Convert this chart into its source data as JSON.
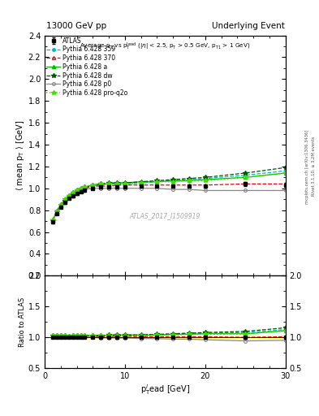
{
  "title_left": "13000 GeV pp",
  "title_right": "Underlying Event",
  "xlabel": "p$_\\mathregular{T}^{l}$ead [GeV]",
  "ylabel_main": "$\\langle$ mean p$_\\mathregular{T}$ $\\rangle$ [GeV]",
  "ylabel_ratio": "Ratio to ATLAS",
  "annotation": "ATLAS_2017_I1509919",
  "right_label1": "Rivet 3.1.10, ≥ 3.2M events",
  "right_label2": "mcplots.cern.ch [arXiv:1306.3436]",
  "ylim_main": [
    0.2,
    2.4
  ],
  "ylim_ratio": [
    0.5,
    2.0
  ],
  "xlim": [
    0,
    30
  ],
  "atlas_x": [
    1.0,
    1.5,
    2.0,
    2.5,
    3.0,
    3.5,
    4.0,
    4.5,
    5.0,
    6.0,
    7.0,
    8.0,
    9.0,
    10.0,
    12.0,
    14.0,
    16.0,
    18.0,
    20.0,
    25.0,
    30.0
  ],
  "atlas_y": [
    0.69,
    0.77,
    0.83,
    0.87,
    0.91,
    0.93,
    0.95,
    0.97,
    0.98,
    1.0,
    1.01,
    1.01,
    1.01,
    1.01,
    1.02,
    1.02,
    1.02,
    1.02,
    1.02,
    1.04,
    1.03
  ],
  "atlas_yerr": [
    0.01,
    0.01,
    0.01,
    0.01,
    0.01,
    0.01,
    0.01,
    0.01,
    0.01,
    0.01,
    0.01,
    0.01,
    0.01,
    0.01,
    0.01,
    0.01,
    0.01,
    0.01,
    0.01,
    0.02,
    0.02
  ],
  "p359_x": [
    1.0,
    1.5,
    2.0,
    2.5,
    3.0,
    3.5,
    4.0,
    4.5,
    5.0,
    6.0,
    7.0,
    8.0,
    9.0,
    10.0,
    12.0,
    14.0,
    16.0,
    18.0,
    20.0,
    25.0,
    30.0
  ],
  "p359_y": [
    0.7,
    0.78,
    0.84,
    0.88,
    0.92,
    0.95,
    0.97,
    0.99,
    1.0,
    1.02,
    1.03,
    1.04,
    1.04,
    1.04,
    1.05,
    1.06,
    1.07,
    1.08,
    1.09,
    1.12,
    1.16
  ],
  "p370_x": [
    1.0,
    1.5,
    2.0,
    2.5,
    3.0,
    3.5,
    4.0,
    4.5,
    5.0,
    6.0,
    7.0,
    8.0,
    9.0,
    10.0,
    12.0,
    14.0,
    16.0,
    18.0,
    20.0,
    25.0,
    30.0
  ],
  "p370_y": [
    0.7,
    0.78,
    0.84,
    0.88,
    0.92,
    0.95,
    0.97,
    0.99,
    1.0,
    1.02,
    1.02,
    1.02,
    1.03,
    1.03,
    1.03,
    1.03,
    1.03,
    1.03,
    1.03,
    1.04,
    1.04
  ],
  "pa_x": [
    1.0,
    1.5,
    2.0,
    2.5,
    3.0,
    3.5,
    4.0,
    4.5,
    5.0,
    6.0,
    7.0,
    8.0,
    9.0,
    10.0,
    12.0,
    14.0,
    16.0,
    18.0,
    20.0,
    25.0,
    30.0
  ],
  "pa_y": [
    0.71,
    0.79,
    0.85,
    0.89,
    0.93,
    0.96,
    0.98,
    1.0,
    1.01,
    1.03,
    1.04,
    1.04,
    1.05,
    1.05,
    1.06,
    1.06,
    1.07,
    1.07,
    1.08,
    1.1,
    1.14
  ],
  "pdw_x": [
    1.0,
    1.5,
    2.0,
    2.5,
    3.0,
    3.5,
    4.0,
    4.5,
    5.0,
    6.0,
    7.0,
    8.0,
    9.0,
    10.0,
    12.0,
    14.0,
    16.0,
    18.0,
    20.0,
    25.0,
    30.0
  ],
  "pdw_y": [
    0.71,
    0.79,
    0.85,
    0.89,
    0.93,
    0.96,
    0.98,
    1.0,
    1.01,
    1.03,
    1.04,
    1.05,
    1.05,
    1.05,
    1.06,
    1.07,
    1.08,
    1.09,
    1.1,
    1.14,
    1.19
  ],
  "pp0_x": [
    1.0,
    1.5,
    2.0,
    2.5,
    3.0,
    3.5,
    4.0,
    4.5,
    5.0,
    6.0,
    7.0,
    8.0,
    9.0,
    10.0,
    12.0,
    14.0,
    16.0,
    18.0,
    20.0,
    25.0,
    30.0
  ],
  "pp0_y": [
    0.7,
    0.78,
    0.84,
    0.88,
    0.92,
    0.94,
    0.96,
    0.98,
    0.99,
    1.0,
    1.0,
    1.0,
    1.0,
    1.0,
    1.0,
    1.0,
    0.99,
    0.99,
    0.98,
    0.98,
    0.98
  ],
  "pq2o_x": [
    1.0,
    1.5,
    2.0,
    2.5,
    3.0,
    3.5,
    4.0,
    4.5,
    5.0,
    6.0,
    7.0,
    8.0,
    9.0,
    10.0,
    12.0,
    14.0,
    16.0,
    18.0,
    20.0,
    25.0,
    30.0
  ],
  "pq2o_y": [
    0.71,
    0.79,
    0.85,
    0.9,
    0.93,
    0.96,
    0.98,
    1.0,
    1.01,
    1.03,
    1.04,
    1.04,
    1.04,
    1.04,
    1.05,
    1.06,
    1.06,
    1.07,
    1.07,
    1.1,
    1.14
  ],
  "color_atlas": "#000000",
  "color_359": "#00BBBB",
  "color_370": "#EE0000",
  "color_a": "#00BB00",
  "color_dw": "#005500",
  "color_p0": "#888888",
  "color_q2o": "#44DD00",
  "bg_color": "#ffffff",
  "ratio_band_color": "#ffff88"
}
